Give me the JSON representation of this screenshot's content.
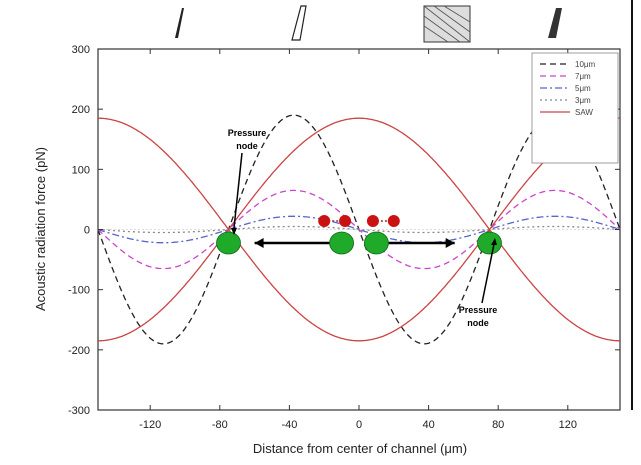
{
  "chart_data": {
    "type": "line",
    "xlabel": "Distance from center of channel (μm)",
    "ylabel": "Acoustic radiation force (pN)",
    "xlim": [
      -150,
      150
    ],
    "ylim": [
      -300,
      300
    ],
    "xticks": [
      "-120",
      "-80",
      "-40",
      "0",
      "40",
      "80",
      "120"
    ],
    "yticks": [
      "300",
      "200",
      "100",
      "0",
      "-100",
      "-200",
      "-300"
    ],
    "xtick_values": [
      -120,
      -80,
      -40,
      0,
      40,
      80,
      120
    ],
    "ytick_values": [
      300,
      200,
      100,
      0,
      -100,
      -200,
      -300
    ],
    "legend_position": "top-right",
    "series": [
      {
        "name": "10μm",
        "amplitude": 190,
        "wavelength": 150,
        "style": "dash",
        "color": "#222222"
      },
      {
        "name": "7μm",
        "amplitude": 65,
        "wavelength": 150,
        "style": "dash",
        "color": "#cc44cc"
      },
      {
        "name": "5μm",
        "amplitude": 22,
        "wavelength": 150,
        "style": "dashdot",
        "color": "#5566cc"
      },
      {
        "name": "3μm",
        "amplitude": 5,
        "wavelength": 150,
        "style": "dot",
        "color": "#888888"
      },
      {
        "name": "SAW",
        "amplitude": 185,
        "wavelength": 300,
        "style": "solid",
        "color": "#cc4444",
        "mirrored": true
      }
    ],
    "annotations": {
      "pressure_node_left": {
        "line1": "Pressure",
        "line2": "node",
        "x": -75
      },
      "pressure_node_right": {
        "line1": "Pressure",
        "line2": "node",
        "x": 75
      },
      "green_particles_x": [
        -75,
        -10,
        10,
        75
      ],
      "red_particles_x": [
        -20,
        -8,
        8,
        20
      ]
    },
    "colors": {
      "green_particle": "#1faa2a",
      "red_particle": "#cc1111",
      "arrow": "#000000"
    }
  }
}
